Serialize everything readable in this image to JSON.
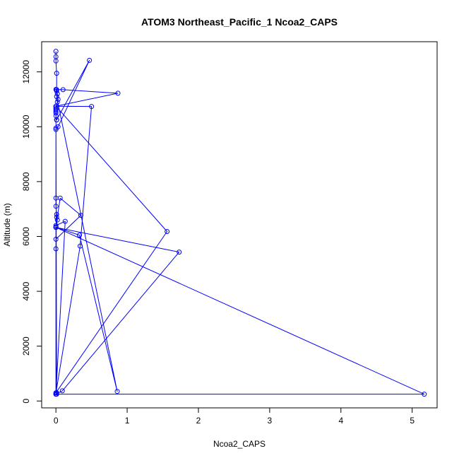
{
  "chart_data": {
    "type": "line",
    "title": "ATOM3 Northeast_Pacific_1 Ncoa2_CAPS",
    "xlabel": "Ncoa2_CAPS",
    "ylabel": "Altitude (m)",
    "xlim": [
      -0.2,
      5.35
    ],
    "ylim": [
      -250,
      13100
    ],
    "x_ticks": [
      0,
      1,
      2,
      3,
      4,
      5
    ],
    "y_ticks": [
      0,
      2000,
      4000,
      6000,
      8000,
      10000,
      12000
    ],
    "grid": false,
    "color": "#0000ff",
    "marker": "open-circle",
    "series": [
      {
        "x": [
          0.0,
          0.0,
          0.0,
          0.01,
          0.01,
          0.01,
          0.02,
          0.03,
          0.02,
          0.0,
          0.0,
          0.0,
          0.0,
          0.0,
          0.0,
          0.01,
          0.01,
          0.47,
          0.03,
          0.0,
          0.0,
          0.0,
          0.0,
          0.01,
          0.01,
          0.02,
          0.0,
          0.06,
          0.35,
          0.0,
          0.0,
          0.0,
          0.33,
          0.86,
          0.01,
          0.0,
          0.1,
          0.87,
          0.0,
          0.5,
          0.34,
          0.0,
          1.56,
          0.0,
          0.01,
          0.01,
          0.0,
          5.17,
          0.0,
          1.73,
          0.09,
          0.0,
          0.0,
          0.13,
          0.0,
          0.0
        ],
        "y": [
          12750,
          12550,
          12400,
          11950,
          11350,
          11300,
          11200,
          11000,
          10900,
          10700,
          10650,
          10600,
          10550,
          10500,
          10400,
          10250,
          10250,
          12420,
          10000,
          9950,
          9900,
          7400,
          7100,
          6800,
          6700,
          6600,
          6350,
          7400,
          6770,
          5900,
          5550,
          6330,
          6050,
          350,
          11100,
          11360,
          11350,
          11220,
          10750,
          10740,
          5650,
          300,
          6180,
          10750,
          300,
          250,
          250,
          250,
          6330,
          5430,
          370,
          250,
          6400,
          6550,
          250,
          6330
        ]
      }
    ]
  }
}
